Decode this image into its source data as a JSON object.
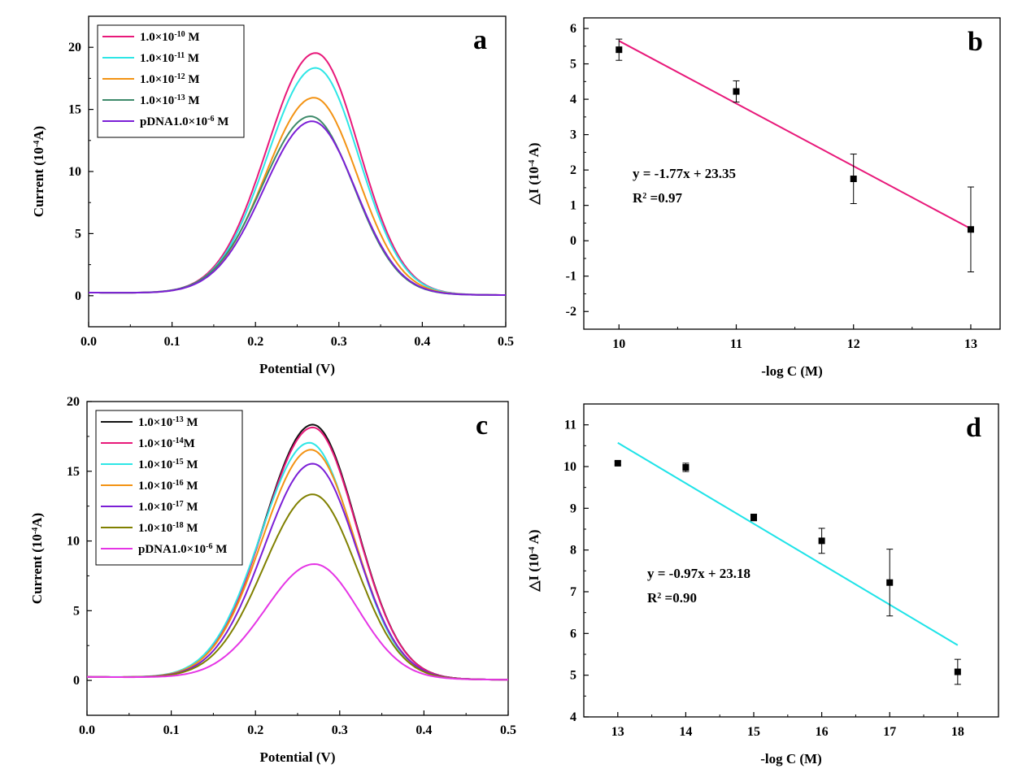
{
  "chart_data": [
    {
      "id": "a",
      "type": "line",
      "panel_label": "a",
      "xlabel": "Potential (V)",
      "ylabel": "Current (10-4A)",
      "xlim": [
        0,
        0.5
      ],
      "ylim": [
        -2.5,
        22.5
      ],
      "xticks": [
        "0.0",
        "0.1",
        "0.2",
        "0.3",
        "0.4",
        "0.5"
      ],
      "yticks": [
        "0",
        "5",
        "10",
        "15",
        "20"
      ],
      "legend_placement": "top-left",
      "series": [
        {
          "name": "1.0×10-10 M",
          "color": "#e8197a",
          "peak_current": 19.5,
          "peak_potential": 0.272
        },
        {
          "name": "1.0×10-11 M",
          "color": "#2ee6e6",
          "peak_current": 18.3,
          "peak_potential": 0.272
        },
        {
          "name": "1.0×10-12 M",
          "color": "#f39314",
          "peak_current": 15.9,
          "peak_potential": 0.27
        },
        {
          "name": "1.0×10-13 M",
          "color": "#3e8a6a",
          "peak_current": 14.4,
          "peak_potential": 0.266
        },
        {
          "name": "pDNA1.0×10-6 M",
          "color": "#7b1fd6",
          "peak_current": 14.0,
          "peak_potential": 0.268
        }
      ]
    },
    {
      "id": "b",
      "type": "scatter",
      "panel_label": "b",
      "xlabel": "-log C (M)",
      "ylabel": "△I (10-4 A)",
      "xlim": [
        9.7,
        13.25
      ],
      "ylim": [
        -2.5,
        6.3
      ],
      "xticks": [
        "10",
        "11",
        "12",
        "13"
      ],
      "yticks": [
        "-2",
        "-1",
        "0",
        "1",
        "2",
        "3",
        "4",
        "5",
        "6"
      ],
      "x": [
        10,
        11,
        12,
        13
      ],
      "y": [
        5.4,
        4.22,
        1.75,
        0.32
      ],
      "yerr": [
        0.3,
        0.3,
        0.7,
        1.2
      ],
      "fit": {
        "slope": -1.77,
        "intercept": 23.35,
        "x_range": [
          10,
          13
        ],
        "color": "#e8197a"
      },
      "equation": "y = -1.77x + 23.35",
      "r2": "=0.97"
    },
    {
      "id": "c",
      "type": "line",
      "panel_label": "c",
      "xlabel": "Potential (V)",
      "ylabel": "Current (10-4A)",
      "xlim": [
        0,
        0.5
      ],
      "ylim": [
        -2.5,
        20
      ],
      "xticks": [
        "0.0",
        "0.1",
        "0.2",
        "0.3",
        "0.4",
        "0.5"
      ],
      "yticks": [
        "0",
        "5",
        "10",
        "15",
        "20"
      ],
      "legend_placement": "top-left",
      "series": [
        {
          "name": "1.0×10-13 M",
          "color": "#111111",
          "peak_current": 18.3,
          "peak_potential": 0.268
        },
        {
          "name": "1.0×10-14M",
          "color": "#e8197a",
          "peak_current": 18.1,
          "peak_potential": 0.268
        },
        {
          "name": "1.0×10-15 M",
          "color": "#2ee6e6",
          "peak_current": 17.0,
          "peak_potential": 0.264
        },
        {
          "name": "1.0×10-16 M",
          "color": "#f39314",
          "peak_current": 16.5,
          "peak_potential": 0.266
        },
        {
          "name": "1.0×10-17 M",
          "color": "#7b1fd6",
          "peak_current": 15.5,
          "peak_potential": 0.268
        },
        {
          "name": "1.0×10-18 M",
          "color": "#808000",
          "peak_current": 13.3,
          "peak_potential": 0.268
        },
        {
          "name": "pDNA1.0×10-6 M",
          "color": "#e535e5",
          "peak_current": 8.3,
          "peak_potential": 0.27
        }
      ]
    },
    {
      "id": "d",
      "type": "scatter",
      "panel_label": "d",
      "xlabel": "-log C (M)",
      "ylabel": "△I (10-4 A)",
      "xlim": [
        12.5,
        18.6
      ],
      "ylim": [
        4,
        11.5
      ],
      "xticks": [
        "13",
        "14",
        "15",
        "16",
        "17",
        "18"
      ],
      "yticks": [
        "4",
        "5",
        "6",
        "7",
        "8",
        "9",
        "10",
        "11"
      ],
      "x": [
        13,
        14,
        15,
        16,
        17,
        18
      ],
      "y": [
        10.08,
        9.98,
        8.78,
        8.22,
        7.22,
        5.08
      ],
      "yerr": [
        0.04,
        0.1,
        0.08,
        0.3,
        0.8,
        0.3
      ],
      "fit": {
        "slope": -0.97,
        "intercept": 23.18,
        "x_range": [
          13,
          18
        ],
        "color": "#1fe3e8"
      },
      "equation": "y = -0.97x + 23.18",
      "r2": "=0.90"
    }
  ]
}
